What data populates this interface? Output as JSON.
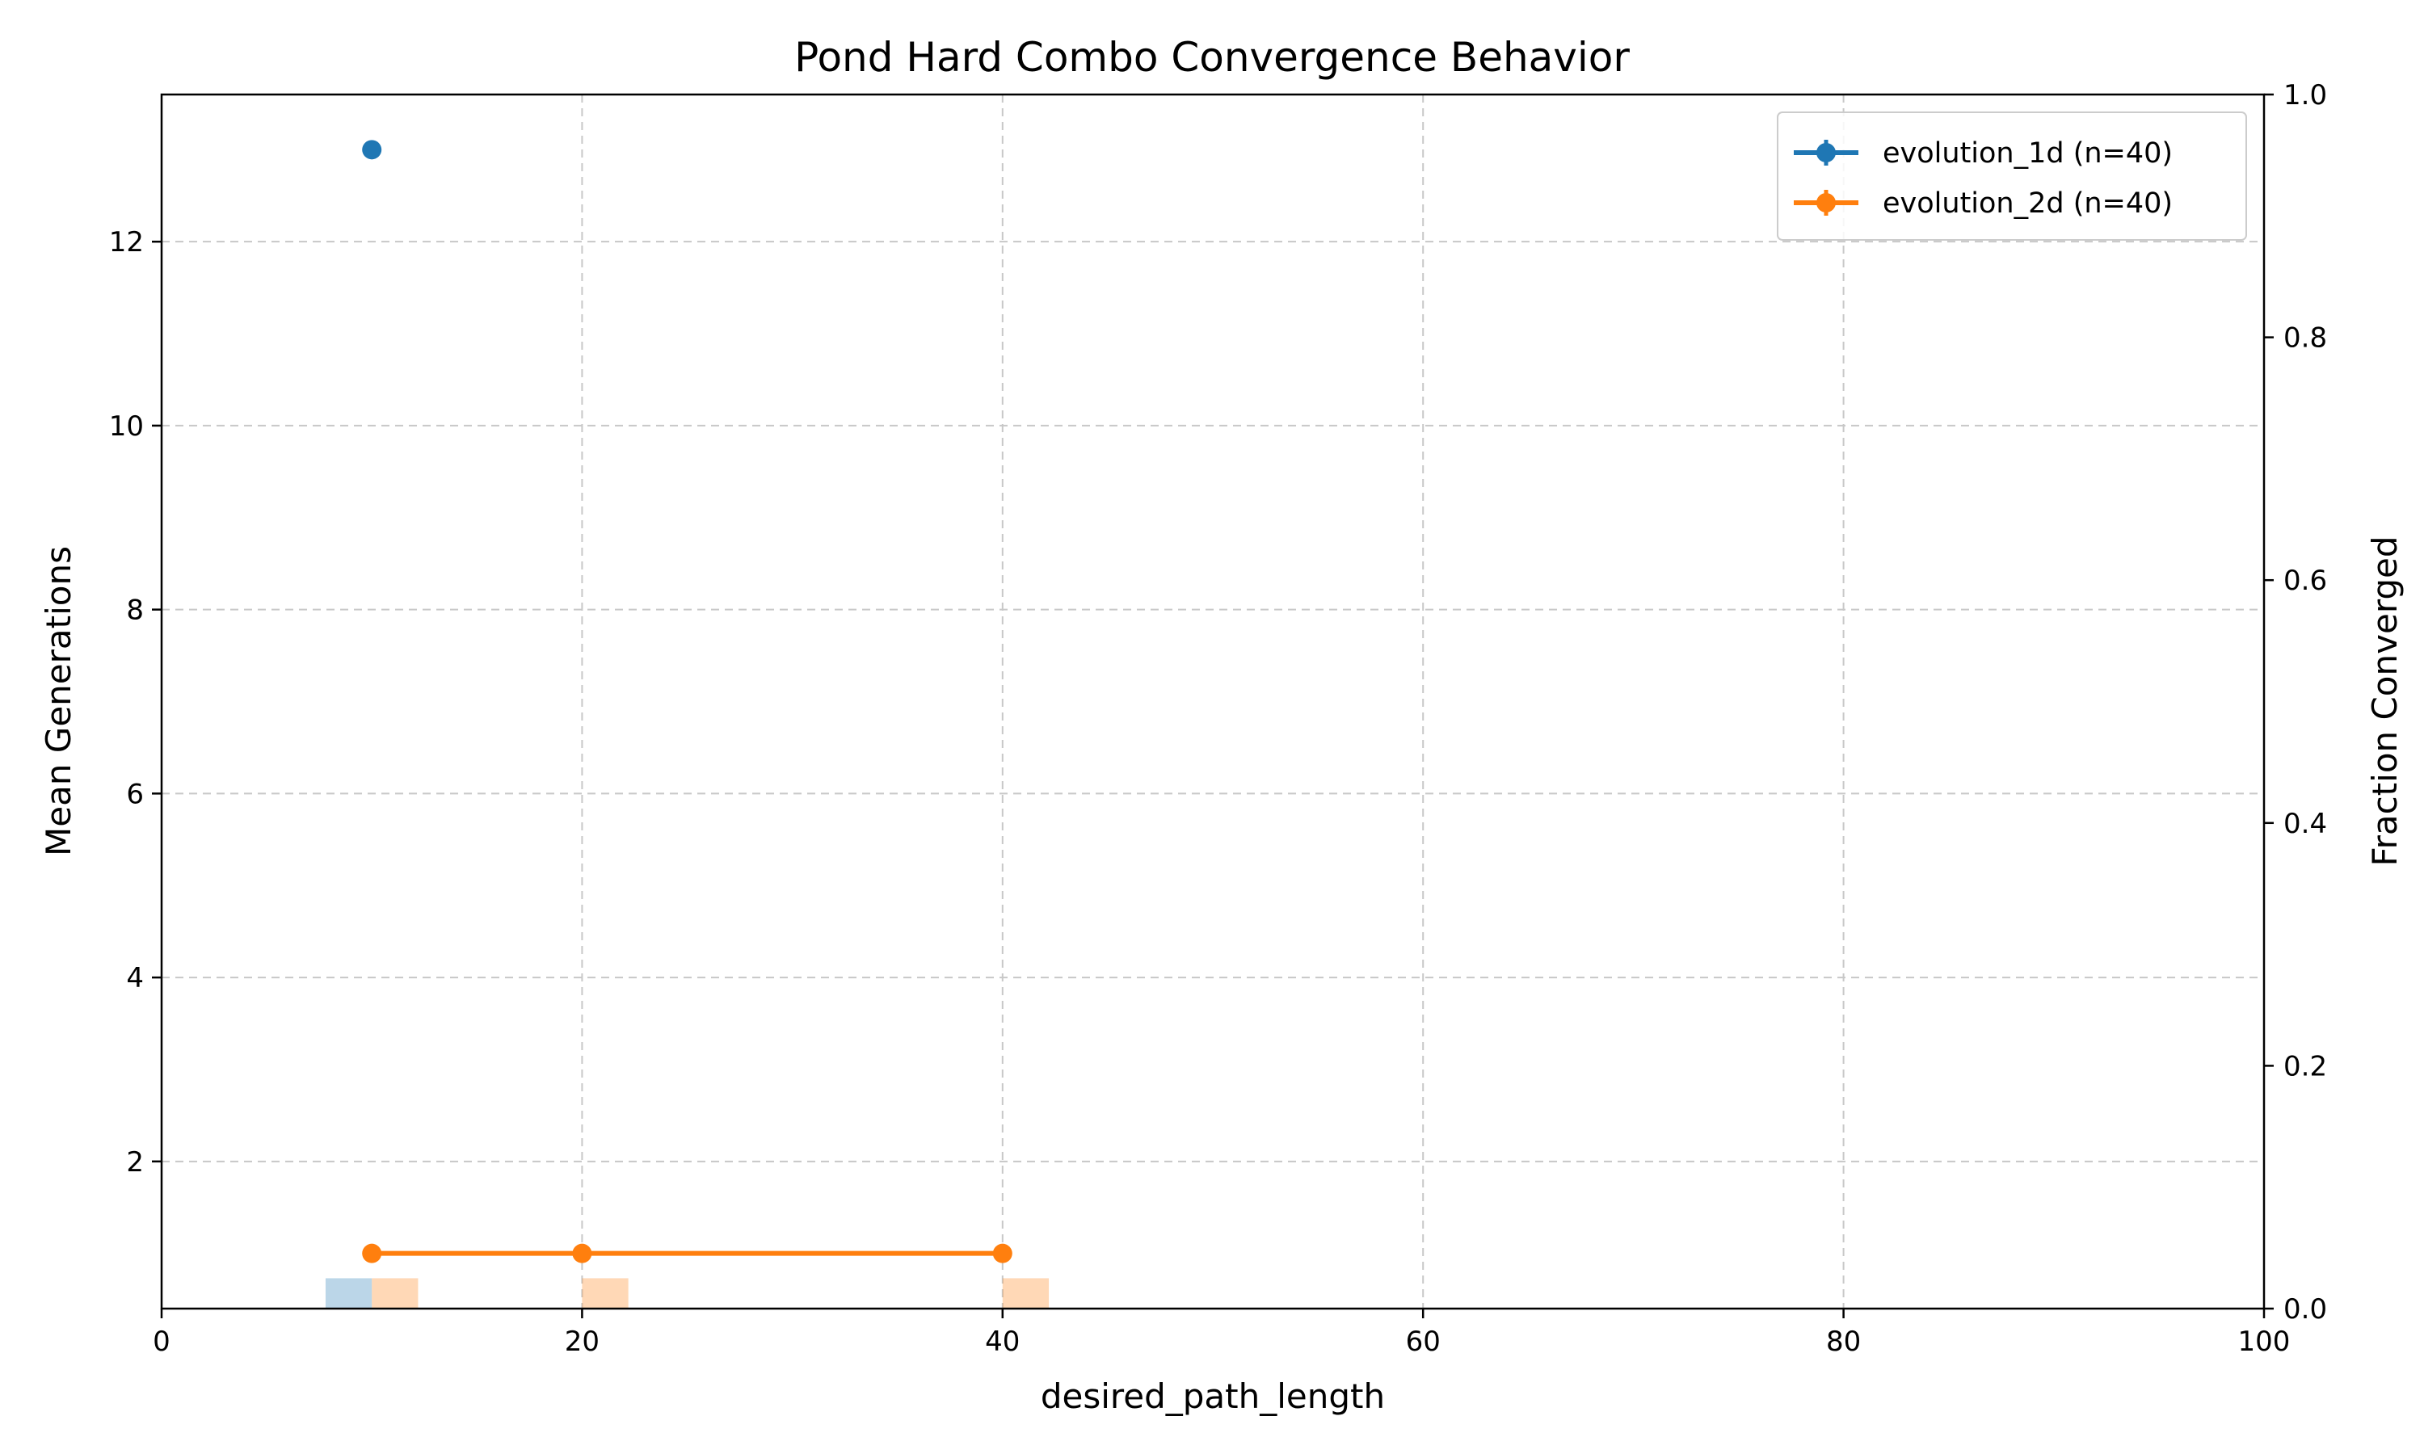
{
  "chart_data": {
    "type": "line",
    "title": "Pond Hard Combo Convergence Behavior",
    "xlabel": "desired_path_length",
    "ylabel": "Mean Generations",
    "y2label": "Fraction Converged",
    "xlim": [
      0,
      100
    ],
    "ylim": [
      0.4,
      13.6
    ],
    "y2lim": [
      0,
      1
    ],
    "xticks": [
      "0",
      "20",
      "40",
      "60",
      "80",
      "100"
    ],
    "yticks": [
      "2",
      "4",
      "6",
      "8",
      "10",
      "12"
    ],
    "y2ticks": [
      "0.0",
      "0.2",
      "0.4",
      "0.6",
      "0.8",
      "1.0"
    ],
    "grid": true,
    "legend_position": "top-right",
    "series": [
      {
        "name": "evolution_1d (n=40)",
        "color": "#1f77b4",
        "x": [
          10
        ],
        "y": [
          13
        ],
        "fraction_converged_x": [
          10
        ],
        "fraction_converged": [
          0.025
        ]
      },
      {
        "name": "evolution_2d (n=40)",
        "color": "#ff7f0e",
        "x": [
          10,
          20,
          40
        ],
        "y": [
          1,
          1,
          1
        ],
        "fraction_converged_x": [
          10,
          20,
          40
        ],
        "fraction_converged": [
          0.025,
          0.025,
          0.025
        ]
      }
    ]
  }
}
